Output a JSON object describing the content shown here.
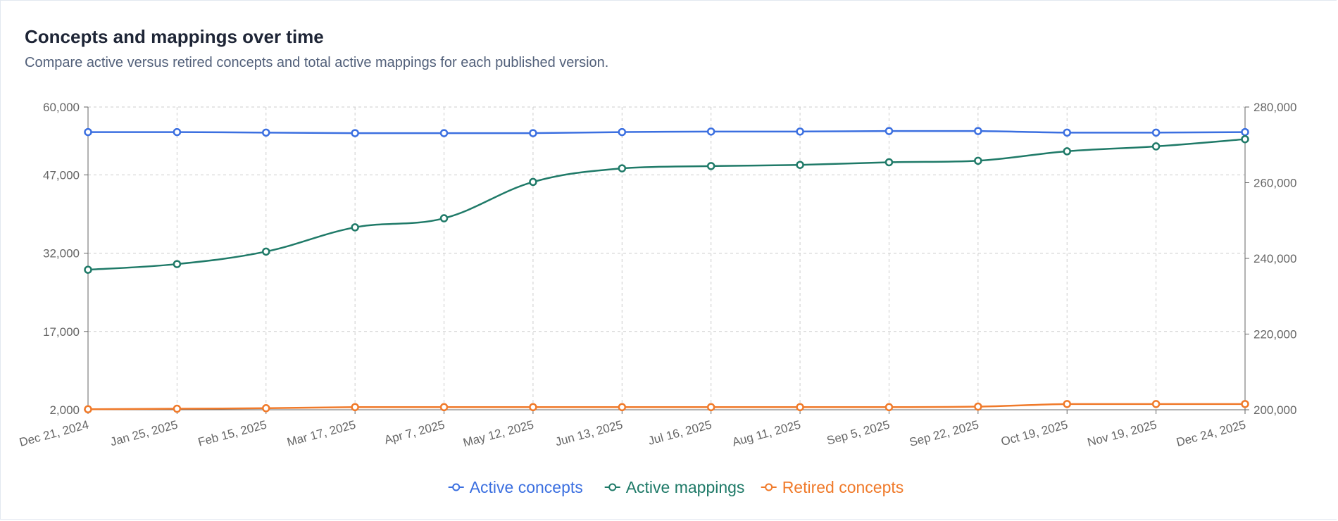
{
  "card": {
    "title": "Concepts and mappings over time",
    "subtitle": "Compare active versus retired concepts and total active mappings for each published version."
  },
  "chart_data": {
    "type": "line",
    "categories": [
      "Dec 21, 2024",
      "Jan 25, 2025",
      "Feb 15, 2025",
      "Mar 17, 2025",
      "Apr 7, 2025",
      "May 12, 2025",
      "Jun 13, 2025",
      "Jul 16, 2025",
      "Aug 11, 2025",
      "Sep 5, 2025",
      "Sep 22, 2025",
      "Oct 19, 2025",
      "Nov 19, 2025",
      "Dec 24, 2025"
    ],
    "y_left": {
      "ticks": [
        2000,
        17000,
        32000,
        47000,
        60000
      ],
      "tick_labels": [
        "2,000",
        "17,000",
        "32,000",
        "47,000",
        "60,000"
      ],
      "ylim": [
        2000,
        60000
      ]
    },
    "y_right": {
      "ticks": [
        200000,
        220000,
        240000,
        260000,
        280000
      ],
      "tick_labels": [
        "200,000",
        "220,000",
        "240,000",
        "260,000",
        "280,000"
      ],
      "ylim": [
        200000,
        280000
      ]
    },
    "grid": true,
    "legend_position": "bottom-center",
    "series": [
      {
        "name": "Active concepts",
        "axis": "left",
        "color": "#3b6fe0",
        "values": [
          55200,
          55200,
          55100,
          55000,
          55000,
          55000,
          55200,
          55300,
          55300,
          55400,
          55400,
          55100,
          55100,
          55200
        ]
      },
      {
        "name": "Active mappings",
        "axis": "right",
        "color": "#1f7a68",
        "values": [
          237000,
          238500,
          241800,
          248200,
          250600,
          260200,
          263800,
          264400,
          264700,
          265400,
          265800,
          268300,
          269600,
          271500
        ]
      },
      {
        "name": "Retired concepts",
        "axis": "left",
        "color": "#f07a2a",
        "values": [
          2100,
          2200,
          2300,
          2500,
          2500,
          2500,
          2500,
          2500,
          2500,
          2500,
          2600,
          3100,
          3100,
          3100
        ]
      }
    ]
  }
}
